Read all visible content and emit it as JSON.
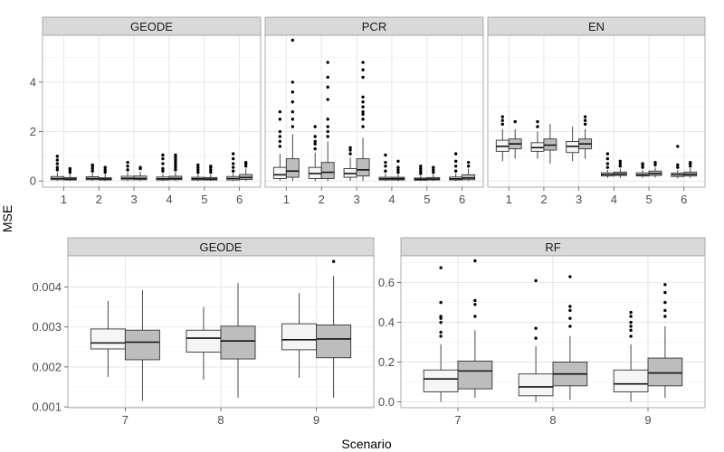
{
  "chart_data": {
    "type": "boxplot",
    "title": "",
    "xlabel": "Scenario",
    "ylabel": "MSE",
    "fill_colors": [
      "#f5f5f5",
      "#bdbdbd"
    ],
    "panels": [
      {
        "id": "geode_top",
        "title": "GEODE",
        "categories": [
          "1",
          "2",
          "3",
          "4",
          "5",
          "6"
        ],
        "ylim": [
          -0.25,
          5.9
        ],
        "yticks": [
          0,
          2,
          4
        ],
        "ytick_labels": [
          "0",
          "2",
          "4"
        ],
        "show_y_axis": true,
        "boxes": [
          {
            "cat": "1",
            "group": 0,
            "min": 0,
            "q1": 0.05,
            "median": 0.1,
            "q3": 0.18,
            "max": 0.35,
            "outliers": [
              0.45,
              0.55,
              0.7,
              0.85,
              1.0
            ]
          },
          {
            "cat": "1",
            "group": 1,
            "min": 0,
            "q1": 0.04,
            "median": 0.08,
            "q3": 0.14,
            "max": 0.28,
            "outliers": [
              0.35,
              0.45,
              0.5
            ]
          },
          {
            "cat": "2",
            "group": 0,
            "min": 0,
            "q1": 0.05,
            "median": 0.1,
            "q3": 0.17,
            "max": 0.32,
            "outliers": [
              0.4,
              0.5,
              0.6,
              0.65
            ]
          },
          {
            "cat": "2",
            "group": 1,
            "min": 0,
            "q1": 0.04,
            "median": 0.08,
            "q3": 0.13,
            "max": 0.27,
            "outliers": [
              0.35,
              0.45,
              0.55
            ]
          },
          {
            "cat": "3",
            "group": 0,
            "min": 0,
            "q1": 0.05,
            "median": 0.11,
            "q3": 0.19,
            "max": 0.35,
            "outliers": [
              0.45,
              0.6,
              0.75
            ]
          },
          {
            "cat": "3",
            "group": 1,
            "min": 0,
            "q1": 0.05,
            "median": 0.1,
            "q3": 0.2,
            "max": 0.38,
            "outliers": [
              0.5,
              0.55
            ]
          },
          {
            "cat": "4",
            "group": 0,
            "min": 0,
            "q1": 0.04,
            "median": 0.09,
            "q3": 0.16,
            "max": 0.3,
            "outliers": [
              0.4,
              0.5,
              0.7,
              0.9,
              1.05
            ]
          },
          {
            "cat": "4",
            "group": 1,
            "min": 0,
            "q1": 0.05,
            "median": 0.1,
            "q3": 0.19,
            "max": 0.36,
            "outliers": [
              0.45,
              0.55,
              0.65,
              0.75,
              0.85,
              0.95,
              1.05
            ]
          },
          {
            "cat": "5",
            "group": 0,
            "min": 0,
            "q1": 0.04,
            "median": 0.09,
            "q3": 0.15,
            "max": 0.28,
            "outliers": [
              0.35,
              0.45,
              0.55,
              0.65
            ]
          },
          {
            "cat": "5",
            "group": 1,
            "min": 0,
            "q1": 0.04,
            "median": 0.08,
            "q3": 0.14,
            "max": 0.26,
            "outliers": [
              0.35,
              0.45,
              0.55,
              0.6
            ]
          },
          {
            "cat": "6",
            "group": 0,
            "min": 0,
            "q1": 0.04,
            "median": 0.1,
            "q3": 0.18,
            "max": 0.32,
            "outliers": [
              0.4,
              0.55,
              0.7,
              0.9,
              1.1
            ]
          },
          {
            "cat": "6",
            "group": 1,
            "min": 0,
            "q1": 0.06,
            "median": 0.14,
            "q3": 0.26,
            "max": 0.5,
            "outliers": [
              0.6,
              0.7,
              0.75
            ]
          }
        ]
      },
      {
        "id": "pcr_top",
        "title": "PCR",
        "categories": [
          "1",
          "2",
          "3",
          "4",
          "5",
          "6"
        ],
        "ylim": [
          -0.25,
          5.9
        ],
        "yticks": [
          0,
          2,
          4
        ],
        "ytick_labels": [
          "0",
          "2",
          "4"
        ],
        "show_y_axis": false,
        "boxes": [
          {
            "cat": "1",
            "group": 0,
            "min": 0,
            "q1": 0.1,
            "median": 0.25,
            "q3": 0.55,
            "max": 1.1,
            "outliers": [
              1.4,
              1.6,
              1.8,
              2.0,
              2.5,
              2.8
            ]
          },
          {
            "cat": "1",
            "group": 1,
            "min": 0,
            "q1": 0.15,
            "median": 0.4,
            "q3": 0.9,
            "max": 1.9,
            "outliers": [
              2.2,
              2.5,
              2.8,
              3.2,
              3.6,
              4.0,
              5.7
            ]
          },
          {
            "cat": "2",
            "group": 0,
            "min": 0,
            "q1": 0.1,
            "median": 0.3,
            "q3": 0.55,
            "max": 1.15,
            "outliers": [
              1.3,
              1.5,
              1.6,
              1.8,
              2.2
            ]
          },
          {
            "cat": "2",
            "group": 1,
            "min": 0,
            "q1": 0.1,
            "median": 0.35,
            "q3": 0.75,
            "max": 1.6,
            "outliers": [
              1.8,
              2.0,
              2.2,
              2.5,
              3.3,
              3.8,
              4.2,
              4.8
            ]
          },
          {
            "cat": "3",
            "group": 0,
            "min": 0,
            "q1": 0.15,
            "median": 0.3,
            "q3": 0.5,
            "max": 0.95,
            "outliers": [
              1.1,
              1.25,
              1.35
            ]
          },
          {
            "cat": "3",
            "group": 1,
            "min": 0,
            "q1": 0.2,
            "median": 0.45,
            "q3": 0.9,
            "max": 1.75,
            "outliers": [
              2.2,
              2.5,
              2.7,
              2.8,
              3.0,
              3.2,
              3.4,
              4.2,
              4.5,
              4.8
            ]
          },
          {
            "cat": "4",
            "group": 0,
            "min": 0,
            "q1": 0.04,
            "median": 0.09,
            "q3": 0.15,
            "max": 0.3,
            "outliers": [
              0.4,
              0.6,
              0.75,
              1.05
            ]
          },
          {
            "cat": "4",
            "group": 1,
            "min": 0,
            "q1": 0.04,
            "median": 0.09,
            "q3": 0.15,
            "max": 0.28,
            "outliers": [
              0.35,
              0.45,
              0.55,
              0.8
            ]
          },
          {
            "cat": "5",
            "group": 0,
            "min": 0,
            "q1": 0.03,
            "median": 0.07,
            "q3": 0.12,
            "max": 0.22,
            "outliers": [
              0.3,
              0.4,
              0.5,
              0.6
            ]
          },
          {
            "cat": "5",
            "group": 1,
            "min": 0,
            "q1": 0.04,
            "median": 0.08,
            "q3": 0.14,
            "max": 0.27,
            "outliers": [
              0.35,
              0.45,
              0.55
            ]
          },
          {
            "cat": "6",
            "group": 0,
            "min": 0,
            "q1": 0.04,
            "median": 0.09,
            "q3": 0.16,
            "max": 0.3,
            "outliers": [
              0.4,
              0.6,
              0.8,
              1.1
            ]
          },
          {
            "cat": "6",
            "group": 1,
            "min": 0,
            "q1": 0.05,
            "median": 0.12,
            "q3": 0.25,
            "max": 0.5,
            "outliers": [
              0.6,
              0.75
            ]
          }
        ]
      },
      {
        "id": "en_top",
        "title": "EN",
        "categories": [
          "1",
          "2",
          "3",
          "4",
          "5",
          "6"
        ],
        "ylim": [
          -0.25,
          5.9
        ],
        "yticks": [
          0,
          2,
          4
        ],
        "ytick_labels": [
          "0",
          "2",
          "4"
        ],
        "show_y_axis": false,
        "boxes": [
          {
            "cat": "1",
            "group": 0,
            "min": 0.8,
            "q1": 1.2,
            "median": 1.4,
            "q3": 1.65,
            "max": 2.1,
            "outliers": [
              2.3,
              2.45,
              2.6
            ]
          },
          {
            "cat": "1",
            "group": 1,
            "min": 0.9,
            "q1": 1.3,
            "median": 1.5,
            "q3": 1.7,
            "max": 2.1,
            "outliers": [
              2.4
            ]
          },
          {
            "cat": "2",
            "group": 0,
            "min": 0.9,
            "q1": 1.2,
            "median": 1.35,
            "q3": 1.55,
            "max": 2.0,
            "outliers": [
              2.2,
              2.4
            ]
          },
          {
            "cat": "2",
            "group": 1,
            "min": 0.7,
            "q1": 1.25,
            "median": 1.45,
            "q3": 1.7,
            "max": 2.3,
            "outliers": []
          },
          {
            "cat": "3",
            "group": 0,
            "min": 0.8,
            "q1": 1.15,
            "median": 1.4,
            "q3": 1.6,
            "max": 2.2,
            "outliers": []
          },
          {
            "cat": "3",
            "group": 1,
            "min": 0.9,
            "q1": 1.3,
            "median": 1.5,
            "q3": 1.7,
            "max": 2.1,
            "outliers": [
              2.3,
              2.45,
              2.6
            ]
          },
          {
            "cat": "4",
            "group": 0,
            "min": 0.12,
            "q1": 0.2,
            "median": 0.26,
            "q3": 0.33,
            "max": 0.45,
            "outliers": [
              0.55,
              0.7,
              0.9,
              1.1
            ]
          },
          {
            "cat": "4",
            "group": 1,
            "min": 0.12,
            "q1": 0.22,
            "median": 0.28,
            "q3": 0.36,
            "max": 0.5,
            "outliers": [
              0.6,
              0.7,
              0.8
            ]
          },
          {
            "cat": "5",
            "group": 0,
            "min": 0.12,
            "q1": 0.2,
            "median": 0.25,
            "q3": 0.33,
            "max": 0.45,
            "outliers": [
              0.55,
              0.65,
              0.7
            ]
          },
          {
            "cat": "5",
            "group": 1,
            "min": 0.14,
            "q1": 0.22,
            "median": 0.3,
            "q3": 0.4,
            "max": 0.55,
            "outliers": [
              0.65,
              0.75
            ]
          },
          {
            "cat": "6",
            "group": 0,
            "min": 0.1,
            "q1": 0.18,
            "median": 0.25,
            "q3": 0.32,
            "max": 0.45,
            "outliers": [
              0.55,
              0.65,
              1.4
            ]
          },
          {
            "cat": "6",
            "group": 1,
            "min": 0.12,
            "q1": 0.2,
            "median": 0.27,
            "q3": 0.36,
            "max": 0.52,
            "outliers": [
              0.6,
              0.7,
              0.75
            ]
          }
        ]
      },
      {
        "id": "geode_bottom",
        "title": "GEODE",
        "categories": [
          "7",
          "8",
          "9"
        ],
        "ylim": [
          0.00098,
          0.00478
        ],
        "yticks": [
          0.001,
          0.002,
          0.003,
          0.004
        ],
        "ytick_labels": [
          "0.001",
          "0.002",
          "0.003",
          "0.004"
        ],
        "show_y_axis": true,
        "boxes": [
          {
            "cat": "7",
            "group": 0,
            "min": 0.00175,
            "q1": 0.00245,
            "median": 0.0026,
            "q3": 0.00295,
            "max": 0.00365,
            "outliers": []
          },
          {
            "cat": "7",
            "group": 1,
            "min": 0.00115,
            "q1": 0.00218,
            "median": 0.00262,
            "q3": 0.00292,
            "max": 0.00392,
            "outliers": []
          },
          {
            "cat": "8",
            "group": 0,
            "min": 0.00168,
            "q1": 0.00237,
            "median": 0.00272,
            "q3": 0.00292,
            "max": 0.0035,
            "outliers": []
          },
          {
            "cat": "8",
            "group": 1,
            "min": 0.00123,
            "q1": 0.0022,
            "median": 0.00265,
            "q3": 0.00302,
            "max": 0.0041,
            "outliers": []
          },
          {
            "cat": "9",
            "group": 0,
            "min": 0.00173,
            "q1": 0.00243,
            "median": 0.00268,
            "q3": 0.00308,
            "max": 0.00385,
            "outliers": []
          },
          {
            "cat": "9",
            "group": 1,
            "min": 0.00123,
            "q1": 0.00223,
            "median": 0.0027,
            "q3": 0.00305,
            "max": 0.00428,
            "outliers": [
              0.00464
            ]
          }
        ]
      },
      {
        "id": "rf_bottom",
        "title": "RF",
        "categories": [
          "7",
          "8",
          "9"
        ],
        "ylim": [
          -0.03,
          0.735
        ],
        "yticks": [
          0,
          0.2,
          0.4,
          0.6
        ],
        "ytick_labels": [
          "0.0",
          "0.2",
          "0.4",
          "0.6"
        ],
        "show_y_axis": true,
        "boxes": [
          {
            "cat": "7",
            "group": 0,
            "min": 0.0,
            "q1": 0.05,
            "median": 0.115,
            "q3": 0.16,
            "max": 0.29,
            "outliers": [
              0.33,
              0.35,
              0.4,
              0.42,
              0.43,
              0.5,
              0.675
            ]
          },
          {
            "cat": "7",
            "group": 1,
            "min": 0.02,
            "q1": 0.065,
            "median": 0.155,
            "q3": 0.205,
            "max": 0.36,
            "outliers": [
              0.43,
              0.49,
              0.51,
              0.71
            ]
          },
          {
            "cat": "8",
            "group": 0,
            "min": 0.0,
            "q1": 0.03,
            "median": 0.075,
            "q3": 0.14,
            "max": 0.28,
            "outliers": [
              0.32,
              0.37,
              0.61
            ]
          },
          {
            "cat": "8",
            "group": 1,
            "min": 0.01,
            "q1": 0.08,
            "median": 0.14,
            "q3": 0.2,
            "max": 0.33,
            "outliers": [
              0.38,
              0.42,
              0.46,
              0.48,
              0.63
            ]
          },
          {
            "cat": "9",
            "group": 0,
            "min": 0.0,
            "q1": 0.05,
            "median": 0.09,
            "q3": 0.16,
            "max": 0.29,
            "outliers": [
              0.33,
              0.36,
              0.38,
              0.4,
              0.43,
              0.45
            ]
          },
          {
            "cat": "9",
            "group": 1,
            "min": 0.02,
            "q1": 0.08,
            "median": 0.145,
            "q3": 0.22,
            "max": 0.38,
            "outliers": [
              0.43,
              0.46,
              0.5,
              0.55,
              0.59
            ]
          }
        ]
      }
    ]
  }
}
